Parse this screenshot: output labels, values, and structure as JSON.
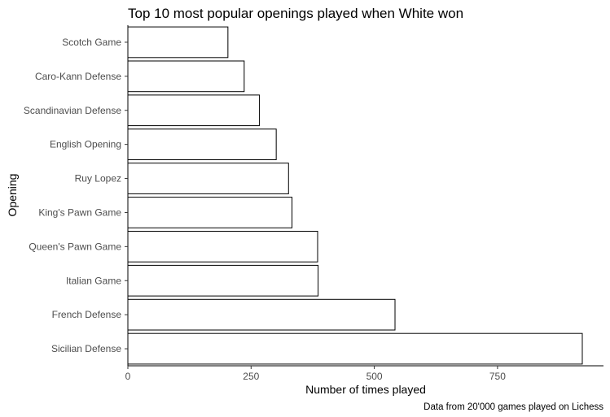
{
  "chart_data": {
    "type": "bar",
    "orientation": "horizontal",
    "title": "Top 10 most popular openings played when White won",
    "xlabel": "Number of times played",
    "ylabel": "Opening",
    "caption": "Data from 20'000 games played on Lichess",
    "categories": [
      "Sicilian Defense",
      "French Defense",
      "Italian Game",
      "Queen's Pawn Game",
      "King's Pawn Game",
      "Ruy Lopez",
      "English Opening",
      "Scandinavian Defense",
      "Caro-Kann Defense",
      "Scotch Game"
    ],
    "values": [
      922,
      542,
      386,
      385,
      333,
      326,
      301,
      267,
      236,
      203
    ],
    "xlim": [
      0,
      965
    ],
    "xticks": [
      0,
      250,
      500,
      750
    ],
    "xtick_labels": [
      "0",
      "250",
      "500",
      "750"
    ],
    "grid": false,
    "bar_fill": "#ffffff",
    "bar_outline": "#000000"
  }
}
